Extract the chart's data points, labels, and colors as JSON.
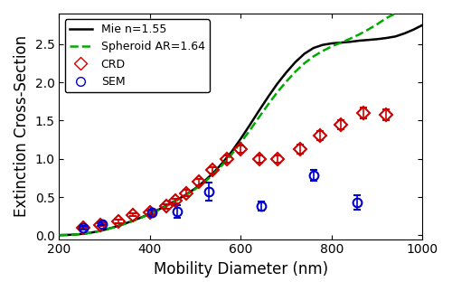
{
  "xlabel": "Mobility Diameter (nm)",
  "ylabel": "Extinction Cross-Section",
  "xlim": [
    200,
    1000
  ],
  "ylim": [
    -0.05,
    2.9
  ],
  "yticks": [
    0.0,
    0.5,
    1.0,
    1.5,
    2.0,
    2.5
  ],
  "xticks": [
    200,
    400,
    600,
    800,
    1000
  ],
  "mie_x": [
    200,
    220,
    240,
    260,
    280,
    300,
    320,
    340,
    360,
    380,
    400,
    420,
    440,
    460,
    480,
    500,
    520,
    540,
    560,
    580,
    600,
    620,
    640,
    660,
    680,
    700,
    720,
    740,
    760,
    780,
    800,
    820,
    840,
    860,
    880,
    900,
    920,
    940,
    960,
    980,
    1000
  ],
  "mie_y": [
    0.002,
    0.005,
    0.012,
    0.025,
    0.045,
    0.072,
    0.105,
    0.143,
    0.185,
    0.232,
    0.283,
    0.34,
    0.4,
    0.465,
    0.535,
    0.615,
    0.71,
    0.82,
    0.95,
    1.095,
    1.265,
    1.445,
    1.63,
    1.81,
    1.98,
    2.13,
    2.265,
    2.375,
    2.45,
    2.49,
    2.51,
    2.52,
    2.53,
    2.545,
    2.555,
    2.565,
    2.58,
    2.6,
    2.64,
    2.69,
    2.75
  ],
  "dda_x": [
    200,
    220,
    240,
    260,
    280,
    300,
    320,
    340,
    360,
    380,
    400,
    420,
    440,
    460,
    480,
    500,
    520,
    540,
    560,
    580,
    600,
    620,
    640,
    660,
    680,
    700,
    720,
    740,
    760,
    780,
    800,
    820,
    840,
    860,
    880,
    900,
    920,
    940,
    960,
    980,
    1000
  ],
  "dda_y": [
    0.002,
    0.005,
    0.012,
    0.025,
    0.044,
    0.07,
    0.103,
    0.14,
    0.182,
    0.228,
    0.278,
    0.334,
    0.394,
    0.458,
    0.528,
    0.605,
    0.695,
    0.8,
    0.925,
    1.06,
    1.215,
    1.375,
    1.545,
    1.71,
    1.87,
    2.01,
    2.14,
    2.25,
    2.34,
    2.41,
    2.47,
    2.52,
    2.57,
    2.625,
    2.69,
    2.76,
    2.84,
    2.9,
    2.94,
    2.965,
    2.98
  ],
  "crd_x": [
    253,
    290,
    330,
    363,
    400,
    435,
    455,
    480,
    508,
    537,
    570,
    600,
    640,
    680,
    730,
    775,
    820,
    870,
    920
  ],
  "crd_y": [
    0.1,
    0.14,
    0.18,
    0.27,
    0.3,
    0.38,
    0.45,
    0.55,
    0.7,
    0.85,
    1.0,
    1.13,
    1.0,
    1.0,
    1.13,
    1.3,
    1.45,
    1.6,
    1.58
  ],
  "crd_yerr": [
    0.015,
    0.015,
    0.02,
    0.02,
    0.02,
    0.03,
    0.03,
    0.04,
    0.04,
    0.04,
    0.05,
    0.05,
    0.05,
    0.05,
    0.06,
    0.06,
    0.06,
    0.07,
    0.07
  ],
  "sem_x": [
    253,
    295,
    405,
    460,
    530,
    645,
    760,
    855
  ],
  "sem_y": [
    0.1,
    0.15,
    0.3,
    0.31,
    0.57,
    0.38,
    0.78,
    0.43
  ],
  "sem_yerr": [
    0.02,
    0.02,
    0.04,
    0.08,
    0.12,
    0.06,
    0.07,
    0.09
  ],
  "mie_color": "#000000",
  "dda_color": "#00aa00",
  "crd_color": "#cc0000",
  "sem_color": "#0000cc",
  "legend_labels": [
    "Mie n=1.55",
    "Spheroid AR=1.64",
    "CRD",
    "SEM"
  ],
  "background_color": "#ffffff",
  "title_fontsize": 11,
  "label_fontsize": 12
}
